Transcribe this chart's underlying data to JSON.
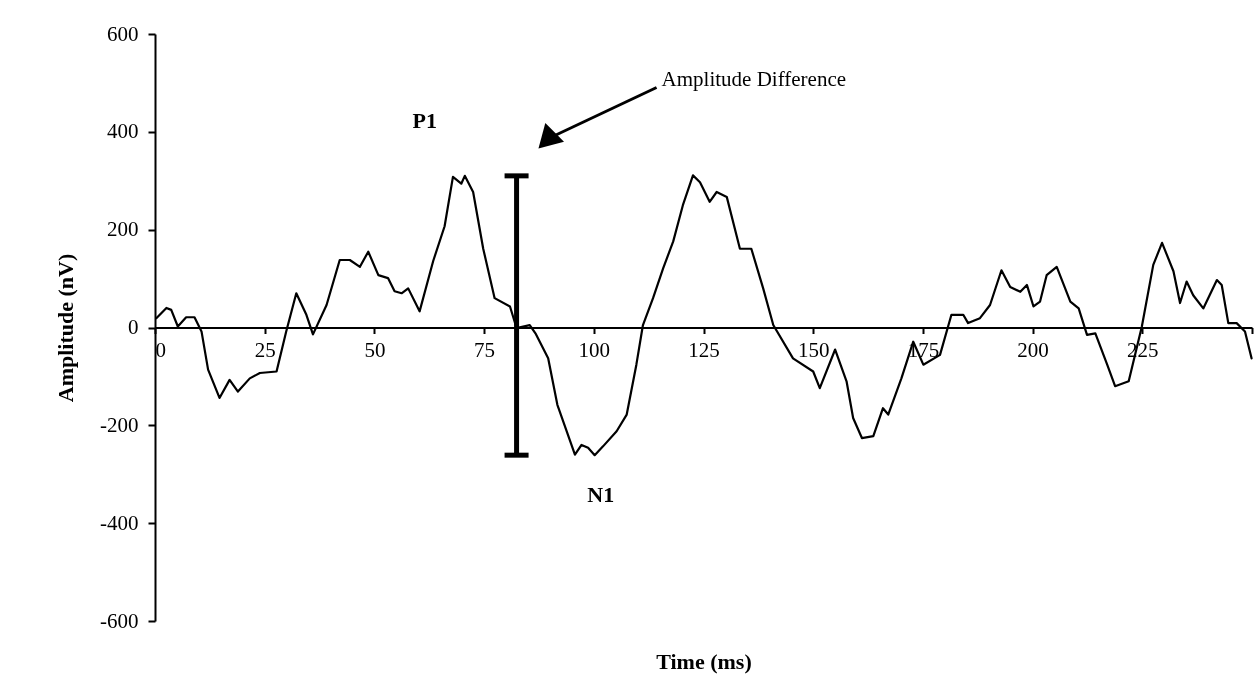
{
  "chart_data": {
    "type": "line",
    "xlabel": "Time (ms)",
    "ylabel": "Amplitude (nV)",
    "xlim": [
      0,
      250
    ],
    "xticks": [
      0,
      25,
      50,
      75,
      100,
      125,
      150,
      175,
      200,
      225,
      {
        "value": 250,
        "label": null
      }
    ],
    "ylim": [
      -600,
      600
    ],
    "yticks": [
      -600,
      -400,
      -200,
      0,
      200,
      400,
      600
    ],
    "grid": false,
    "marker": "none",
    "line_style": "solid",
    "annotations": [
      {
        "text": "P1",
        "x": 70.6,
        "y": 310
      },
      {
        "text": "N1",
        "x": 100.2,
        "y": -261
      },
      "Amplitude Difference"
    ],
    "series": [
      {
        "color": "#000000",
        "x": [
          0.3,
          2.6,
          3.7,
          5.2,
          7.1,
          9.0,
          10.6,
          12.1,
          14.7,
          17.0,
          18.9,
          21.6,
          23.9,
          27.7,
          29.9,
          32.2,
          34.5,
          36.0,
          39.1,
          42.1,
          44.4,
          46.7,
          48.6,
          50.9,
          53.1,
          54.6,
          56.2,
          57.7,
          60.3,
          63.4,
          66.0,
          67.9,
          69.8,
          70.6,
          72.5,
          74.8,
          77.4,
          80.9,
          82.4,
          85.4,
          86.7,
          89.6,
          91.7,
          95.7,
          97.2,
          98.7,
          100.2,
          102.1,
          105.2,
          107.5,
          109.7,
          111.2,
          113.5,
          115.8,
          118.1,
          120.3,
          122.6,
          124.2,
          126.4,
          128.0,
          130.3,
          133.3,
          135.9,
          138.6,
          140.9,
          145.4,
          150.0,
          151.5,
          155.0,
          157.6,
          159.1,
          161.1,
          163.7,
          165.9,
          167.1,
          170.1,
          172.8,
          175.1,
          178.9,
          181.5,
          184.2,
          185.3,
          188.0,
          190.3,
          192.9,
          194.9,
          197.2,
          198.7,
          200.2,
          201.7,
          203.2,
          205.5,
          208.6,
          210.5,
          212.4,
          214.3,
          217.0,
          218.8,
          221.9,
          224.9,
          227.5,
          229.5,
          232.1,
          233.6,
          235.1,
          236.6,
          238.9,
          242.0,
          243.1,
          244.6,
          246.5,
          248.4,
          249.9
        ],
        "values": [
          19,
          40,
          36,
          2,
          21,
          21,
          -8,
          -86,
          -144,
          -107,
          -131,
          -104,
          -93,
          -90,
          -8,
          70,
          26,
          -14,
          46,
          138,
          138,
          124,
          155,
          107,
          101,
          74,
          70,
          80,
          33,
          136,
          207,
          308,
          294,
          310,
          277,
          161,
          60,
          43,
          -1,
          5,
          -12,
          -63,
          -158,
          -260,
          -240,
          -246,
          -261,
          -243,
          -212,
          -178,
          -76,
          5,
          60,
          121,
          176,
          250,
          311,
          297,
          257,
          277,
          267,
          161,
          161,
          80,
          5,
          -63,
          -90,
          -124,
          -45,
          -110,
          -185,
          -226,
          -222,
          -165,
          -178,
          -104,
          -29,
          -76,
          -56,
          26,
          26,
          9,
          19,
          46,
          117,
          83,
          73,
          87,
          43,
          53,
          107,
          124,
          53,
          39,
          -15,
          -12,
          -76,
          -120,
          -110,
          2,
          128,
          173,
          115,
          50,
          94,
          66,
          39,
          97,
          87,
          9,
          9,
          -8,
          -63
        ]
      }
    ]
  }
}
